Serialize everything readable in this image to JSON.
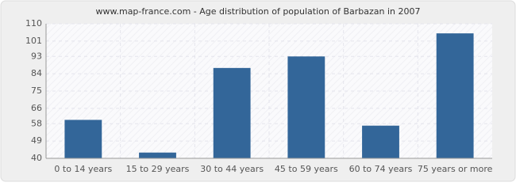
{
  "chart_data": {
    "type": "bar",
    "title": "www.map-france.com - Age distribution of population of Barbazan in 2007",
    "categories": [
      "0 to 14 years",
      "15 to 29 years",
      "30 to 44 years",
      "45 to 59 years",
      "60 to 74 years",
      "75 years or more"
    ],
    "values": [
      60,
      43,
      87,
      93,
      57,
      105
    ],
    "color": "#336699",
    "ylim": [
      40,
      110
    ],
    "yticks": [
      40,
      49,
      58,
      66,
      75,
      84,
      93,
      101,
      110
    ],
    "grid": true
  }
}
